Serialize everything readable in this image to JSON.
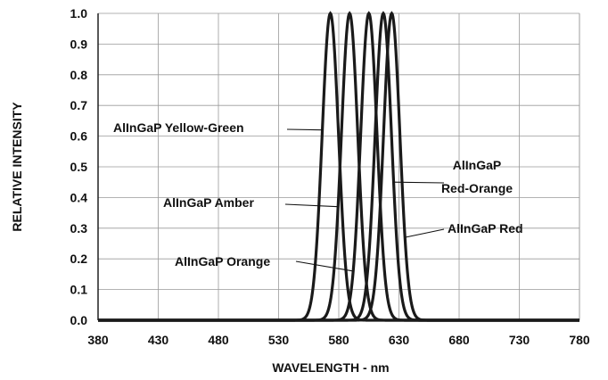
{
  "chart_data": {
    "type": "line",
    "title": "",
    "xlabel": "WAVELENGTH - nm",
    "ylabel": "RELATIVE INTENSITY",
    "xlim": [
      380,
      780
    ],
    "ylim": [
      0,
      1.0
    ],
    "x_ticks": [
      "380",
      "430",
      "480",
      "530",
      "580",
      "630",
      "680",
      "730",
      "780"
    ],
    "y_ticks": [
      "0.0",
      "0.1",
      "0.2",
      "0.3",
      "0.4",
      "0.5",
      "0.6",
      "0.7",
      "0.8",
      "0.9",
      "1.0"
    ],
    "grid": true,
    "series": [
      {
        "name": "AlInGaP Yellow-Green",
        "peak_nm": 573,
        "fwhm_nm": 16
      },
      {
        "name": "AlInGaP Amber",
        "peak_nm": 589,
        "fwhm_nm": 16
      },
      {
        "name": "AlInGaP Orange",
        "peak_nm": 605,
        "fwhm_nm": 16
      },
      {
        "name": "AlInGaP Red-Orange",
        "peak_nm": 617,
        "fwhm_nm": 16
      },
      {
        "name": "AlInGaP Red",
        "peak_nm": 624,
        "fwhm_nm": 16
      }
    ],
    "annotations": [
      {
        "text": "AlInGaP Yellow-Green",
        "series": "AlInGaP Yellow-Green"
      },
      {
        "text": "AlInGaP Amber",
        "series": "AlInGaP Amber"
      },
      {
        "text": "AlInGaP Orange",
        "series": "AlInGaP Orange"
      },
      {
        "text": "AlInGaP Red-Orange",
        "lines": [
          "AlInGaP",
          "Red-Orange"
        ],
        "series": "AlInGaP Red-Orange"
      },
      {
        "text": "AlInGaP Red",
        "series": "AlInGaP Red"
      }
    ]
  }
}
